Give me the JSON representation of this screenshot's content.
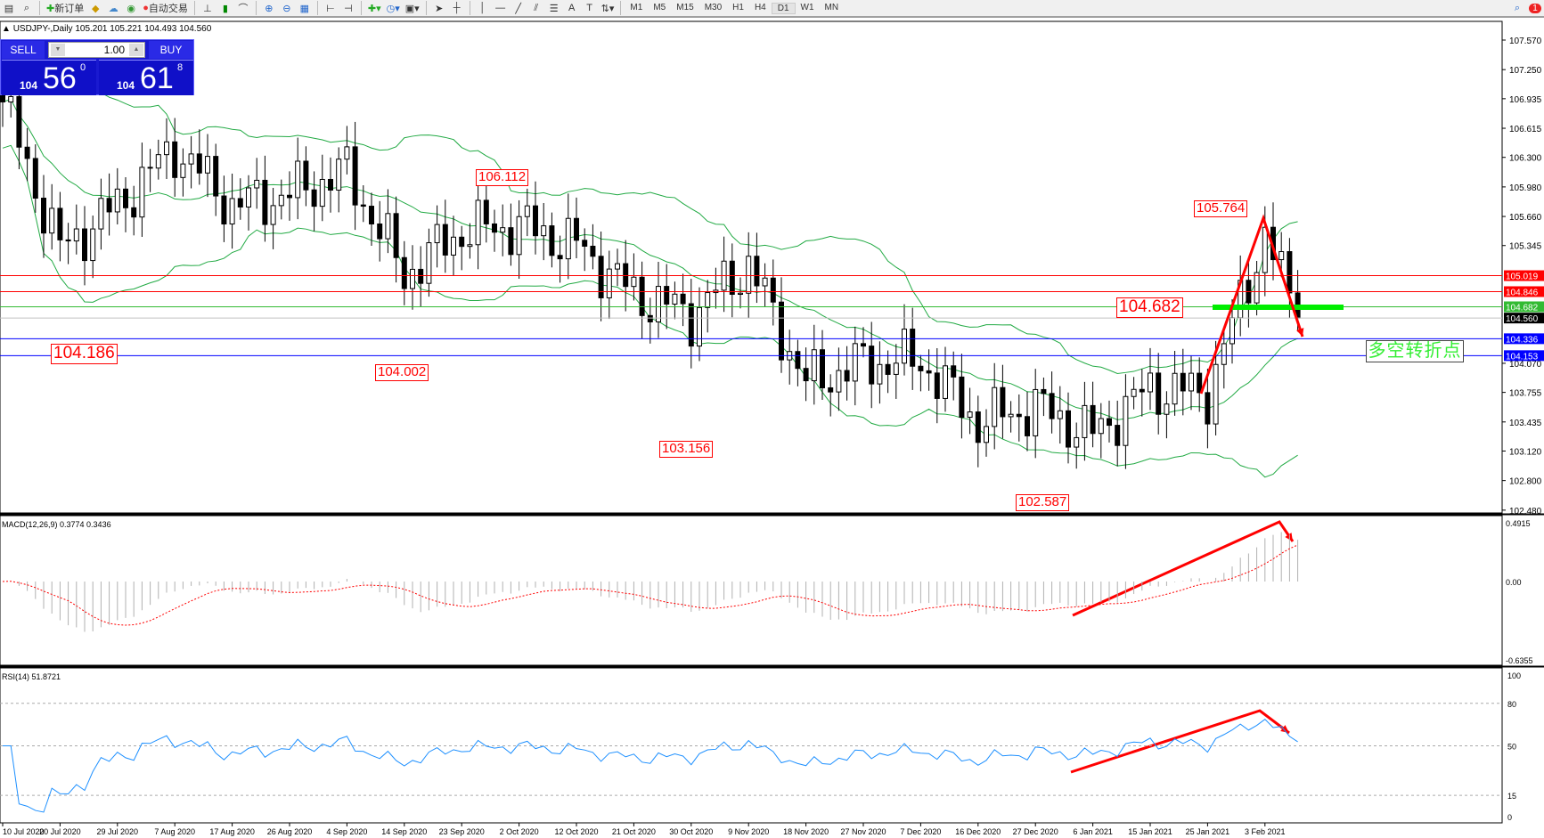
{
  "toolbar": {
    "new_order": "新订单",
    "auto_trading": "自动交易",
    "timeframes": [
      "M1",
      "M5",
      "M15",
      "M30",
      "H1",
      "H4",
      "D1",
      "W1",
      "MN"
    ],
    "active_timeframe": "D1",
    "notification_count": "1"
  },
  "chart_header": {
    "symbol": "USDJPY-,Daily",
    "ohlc": "105.201 105.221 104.493 104.560"
  },
  "trade_panel": {
    "sell_label": "SELL",
    "buy_label": "BUY",
    "lot": "1.00",
    "sell_prefix": "104",
    "sell_big": "56",
    "sell_point": "0",
    "buy_prefix": "104",
    "buy_big": "61",
    "buy_point": "8"
  },
  "price_axis": [
    "107.570",
    "107.250",
    "106.935",
    "106.615",
    "106.300",
    "105.980",
    "105.660",
    "105.345",
    "104.070",
    "103.755",
    "103.435",
    "103.120",
    "102.800",
    "102.480"
  ],
  "levels": [
    {
      "price": "105.019",
      "color": "#ff0000"
    },
    {
      "price": "104.846",
      "color": "#ff0000"
    },
    {
      "price": "104.682",
      "color": "#33bb33"
    },
    {
      "price": "104.560",
      "color": "#000000"
    },
    {
      "price": "104.336",
      "color": "#0000ff"
    },
    {
      "price": "104.153",
      "color": "#0000ff"
    }
  ],
  "annotations": {
    "a1": "106.112",
    "a2": "104.186",
    "a3": "104.002",
    "a4": "103.156",
    "a5": "102.587",
    "a6": "105.764",
    "a7": "104.682",
    "turning_point": "多空转折点"
  },
  "macd": {
    "label": "MACD(12,26,9) 0.3774 0.3436",
    "axis": [
      "0.4915",
      "0.00",
      "-0.6355"
    ],
    "hist_color": "#b0b0b0",
    "signal_color": "#ff0000"
  },
  "rsi": {
    "label": "RSI(14) 51.8721",
    "axis": [
      "100",
      "80",
      "50",
      "15",
      "0"
    ],
    "line_color": "#1e90ff"
  },
  "date_axis": [
    "10 Jul 2020",
    "20 Jul 2020",
    "29 Jul 2020",
    "7 Aug 2020",
    "17 Aug 2020",
    "26 Aug 2020",
    "4 Sep 2020",
    "14 Sep 2020",
    "23 Sep 2020",
    "2 Oct 2020",
    "12 Oct 2020",
    "21 Oct 2020",
    "30 Oct 2020",
    "9 Nov 2020",
    "18 Nov 2020",
    "27 Nov 2020",
    "7 Dec 2020",
    "16 Dec 2020",
    "27 Dec 2020",
    "6 Jan 2021",
    "15 Jan 2021",
    "25 Jan 2021",
    "3 Feb 2021"
  ],
  "chart_data": {
    "type": "candlestick",
    "symbol": "USDJPY",
    "timeframe": "Daily",
    "ylim": [
      102.48,
      107.57
    ],
    "indicators": [
      "Bollinger Bands",
      "MACD(12,26,9)",
      "RSI(14)"
    ],
    "approx_closes": [
      {
        "date": "10 Jul 2020",
        "close": 106.9
      },
      {
        "date": "20 Jul 2020",
        "close": 105.3
      },
      {
        "date": "29 Jul 2020",
        "close": 105.78
      },
      {
        "date": "7 Aug 2020",
        "close": 106.4
      },
      {
        "date": "17 Aug 2020",
        "close": 105.78
      },
      {
        "date": "26 Aug 2020",
        "close": 105.9
      },
      {
        "date": "4 Sep 2020",
        "close": 106.15
      },
      {
        "date": "14 Sep 2020",
        "close": 105.03
      },
      {
        "date": "23 Sep 2020",
        "close": 105.5
      },
      {
        "date": "2 Oct 2020",
        "close": 105.56
      },
      {
        "date": "12 Oct 2020",
        "close": 105.35
      },
      {
        "date": "21 Oct 2020",
        "close": 104.82
      },
      {
        "date": "30 Oct 2020",
        "close": 104.6
      },
      {
        "date": "9 Nov 2020",
        "close": 105.14
      },
      {
        "date": "18 Nov 2020",
        "close": 103.86
      },
      {
        "date": "27 Nov 2020",
        "close": 104.07
      },
      {
        "date": "7 Dec 2020",
        "close": 104.1
      },
      {
        "date": "16 Dec 2020",
        "close": 103.43
      },
      {
        "date": "27 Dec 2020",
        "close": 103.6
      },
      {
        "date": "6 Jan 2021",
        "close": 103.3
      },
      {
        "date": "15 Jan 2021",
        "close": 103.8
      },
      {
        "date": "25 Jan 2021",
        "close": 103.75
      },
      {
        "date": "3 Feb 2021",
        "close": 105.46
      },
      {
        "date": "8 Feb 2021",
        "close": 104.56
      }
    ]
  }
}
